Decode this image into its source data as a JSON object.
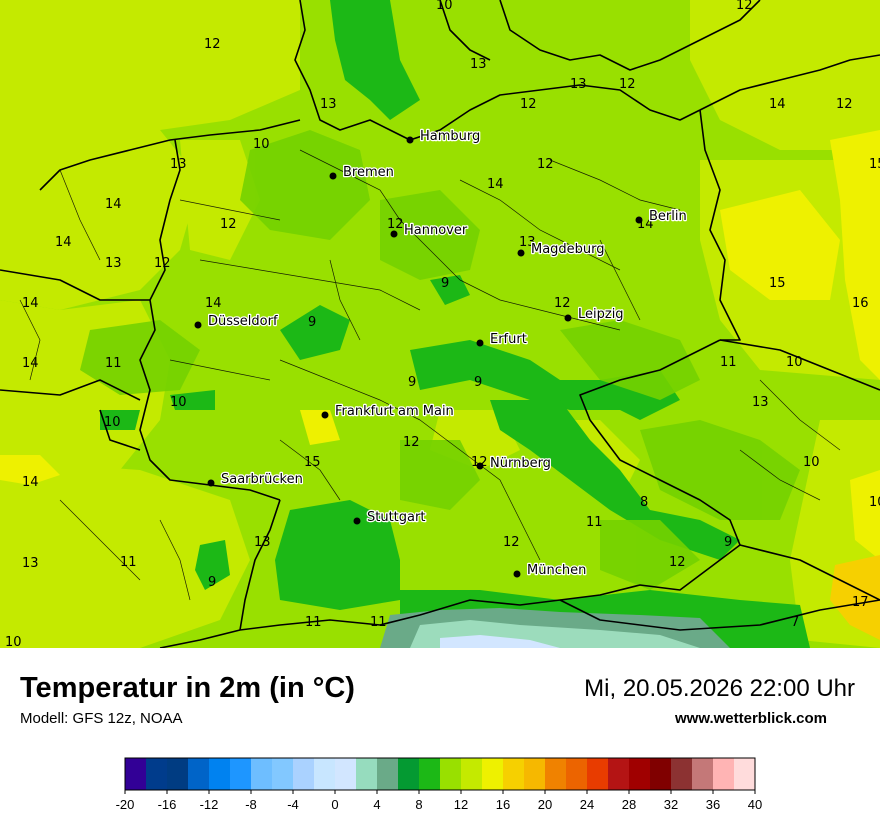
{
  "header": {
    "title": "Temperatur in 2m (in °C)",
    "model": "Modell: GFS 12z, NOAA",
    "datetime": "Mi, 20.05.2026 22:00 Uhr",
    "website": "www.wetterblick.com"
  },
  "cities": [
    {
      "name": "Hamburg"
    },
    {
      "name": "Bremen"
    },
    {
      "name": "Berlin"
    },
    {
      "name": "Hannover"
    },
    {
      "name": "Magdeburg"
    },
    {
      "name": "Leipzig"
    },
    {
      "name": "Düsseldorf"
    },
    {
      "name": "Erfurt"
    },
    {
      "name": "Frankfurt am Main"
    },
    {
      "name": "Nürnberg"
    },
    {
      "name": "Saarbrücken"
    },
    {
      "name": "Stuttgart"
    },
    {
      "name": "München"
    }
  ],
  "value_labels": [
    "10",
    "12",
    "12",
    "13",
    "13",
    "12",
    "13",
    "14",
    "12",
    "12",
    "15",
    "10",
    "13",
    "12",
    "14",
    "14",
    "12",
    "13",
    "12",
    "14",
    "12",
    "14",
    "13",
    "15",
    "16",
    "9",
    "14",
    "9",
    "14",
    "12",
    "11",
    "10",
    "10",
    "9",
    "9",
    "13",
    "10",
    "10",
    "12",
    "15",
    "12",
    "14",
    "10",
    "8",
    "11",
    "9",
    "13",
    "11",
    "12",
    "9",
    "12",
    "17",
    "7",
    "10",
    "11",
    "11",
    "13",
    "14",
    "11"
  ],
  "colors": {
    "base": "#99e000",
    "darker_green": "#1cb816",
    "mid_green": "#74d200",
    "light_lime": "#c4ea00",
    "yellow": "#eef100",
    "orange_yellow": "#f6d000",
    "mint": "#9cdcbc",
    "teal": "#6aaa88",
    "borders": "#000000"
  },
  "colorbar": {
    "ticks": [
      "-20",
      "-16",
      "-12",
      "-8",
      "-4",
      "0",
      "4",
      "8",
      "12",
      "16",
      "20",
      "24",
      "28",
      "32",
      "36",
      "40"
    ],
    "colors": [
      "#320096",
      "#003c8c",
      "#003c82",
      "#0064c8",
      "#0082f0",
      "#1e96ff",
      "#6ebeff",
      "#82c8ff",
      "#aad2ff",
      "#c8e6ff",
      "#d2e6ff",
      "#96dcbe",
      "#6aaa88",
      "#049a32",
      "#1cb816",
      "#99e000",
      "#c4ea00",
      "#eef100",
      "#f6d000",
      "#f6b800",
      "#f08200",
      "#ec6400",
      "#e83c00",
      "#b41414",
      "#a00000",
      "#800000",
      "#8c3232",
      "#c47878",
      "#ffb4b4",
      "#ffdcdc"
    ]
  }
}
